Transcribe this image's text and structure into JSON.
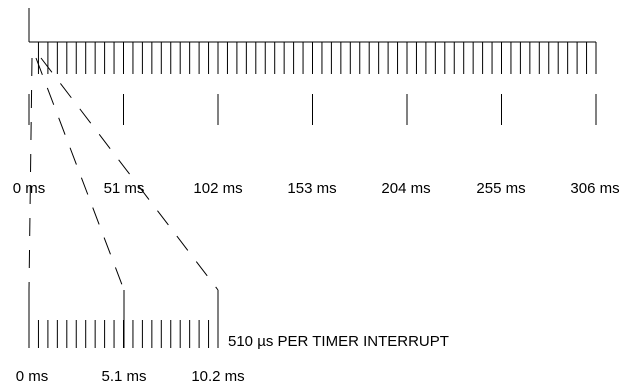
{
  "timeline": {
    "tick_count": 60,
    "major_labels": [
      "0 ms",
      "51 ms",
      "102 ms",
      "153 ms",
      "204 ms",
      "255 ms",
      "306 ms"
    ]
  },
  "zoom": {
    "tick_count": 20,
    "labels": [
      "0 ms",
      "5.1 ms",
      "10.2 ms"
    ],
    "annotation": "510 µs PER TIMER INTERRUPT"
  },
  "colors": {
    "line": "#000000",
    "background": "#ffffff"
  }
}
